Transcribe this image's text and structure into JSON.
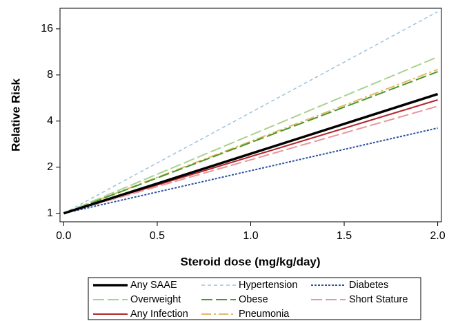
{
  "chart_data": {
    "type": "line",
    "x_label": "Steroid dose (mg/kg/day)",
    "y_label": "Relative Risk",
    "log_y": true,
    "x": [
      0,
      2
    ],
    "xlim": [
      -0.02,
      2.02
    ],
    "xticks": [
      {
        "value": 0,
        "label": "0.0"
      },
      {
        "value": 0.5,
        "label": "0.5"
      },
      {
        "value": 1,
        "label": "1.0"
      },
      {
        "value": 1.5,
        "label": "1.5"
      },
      {
        "value": 2,
        "label": "2.0"
      }
    ],
    "ylim": [
      0.88,
      21.8
    ],
    "yticks": [
      1,
      2,
      4,
      8,
      16
    ],
    "legend": "bottom",
    "series": [
      {
        "name": "Any SAAE",
        "color": "#000000",
        "style": "bold",
        "values": [
          1,
          6.0
        ]
      },
      {
        "name": "Hypertension",
        "color": "#9cc3da",
        "style": "dashed",
        "values": [
          1,
          20.7
        ]
      },
      {
        "name": "Diabetes",
        "color": "#2c50a0",
        "style": "dotted",
        "values": [
          1,
          3.6
        ]
      },
      {
        "name": "Overweight",
        "color": "#a9d18e",
        "style": "longdash",
        "values": [
          1,
          10.5
        ]
      },
      {
        "name": "Obese",
        "color": "#4a962a",
        "style": "longdash",
        "values": [
          1,
          8.4
        ]
      },
      {
        "name": "Short Stature",
        "color": "#e8959b",
        "style": "longdash",
        "values": [
          1,
          5.0
        ]
      },
      {
        "name": "Any Infection",
        "color": "#b3262a",
        "style": "solid",
        "values": [
          1,
          5.5
        ]
      },
      {
        "name": "Pneumonia",
        "color": "#e2b864",
        "style": "dashdot",
        "values": [
          1,
          8.7
        ]
      }
    ]
  }
}
